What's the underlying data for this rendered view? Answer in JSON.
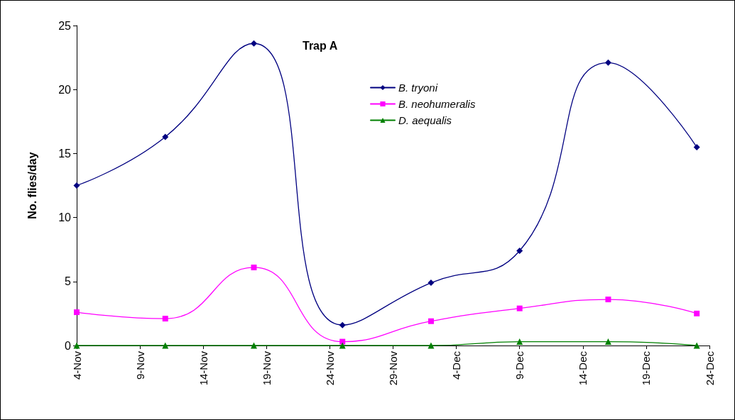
{
  "chart_data": {
    "type": "line",
    "title": "Trap A",
    "ylabel": "No. flies/day",
    "x": [
      "--11-04",
      "--11-11",
      "--11-18",
      "--11-25",
      "--12-02",
      "--12-09",
      "--12-16",
      "--12-23"
    ],
    "series": [
      {
        "name": "B. tryoni",
        "color": "#000080",
        "marker": "diamond",
        "values": [
          12.5,
          16.3,
          23.6,
          1.6,
          4.9,
          7.4,
          22.1,
          15.5
        ]
      },
      {
        "name": "B. neohumeralis",
        "color": "#ff00ff",
        "marker": "square",
        "values": [
          2.6,
          2.1,
          6.1,
          0.3,
          1.9,
          2.9,
          3.6,
          2.5
        ]
      },
      {
        "name": "D. aequalis",
        "color": "#008000",
        "marker": "triangle",
        "values": [
          0,
          0,
          0,
          0,
          0,
          0.3,
          0.3,
          0
        ]
      }
    ],
    "xlim": [
      "--11-04",
      "--12-24"
    ],
    "xticks": [
      {
        "value": "--11-04",
        "label": "4-Nov"
      },
      {
        "value": "--11-09",
        "label": "9-Nov"
      },
      {
        "value": "--11-14",
        "label": "14-Nov"
      },
      {
        "value": "--11-19",
        "label": "19-Nov"
      },
      {
        "value": "--11-24",
        "label": "24-Nov"
      },
      {
        "value": "--11-29",
        "label": "29-Nov"
      },
      {
        "value": "--12-04",
        "label": "4-Dec"
      },
      {
        "value": "--12-09",
        "label": "9-Dec"
      },
      {
        "value": "--12-14",
        "label": "14-Dec"
      },
      {
        "value": "--12-19",
        "label": "19-Dec"
      },
      {
        "value": "--12-24",
        "label": "24-Dec"
      }
    ],
    "ylim": [
      0,
      25
    ],
    "yticks": [
      0,
      5,
      10,
      15,
      20,
      25
    ],
    "grid": false,
    "legend": "top",
    "line_style": "solid"
  }
}
